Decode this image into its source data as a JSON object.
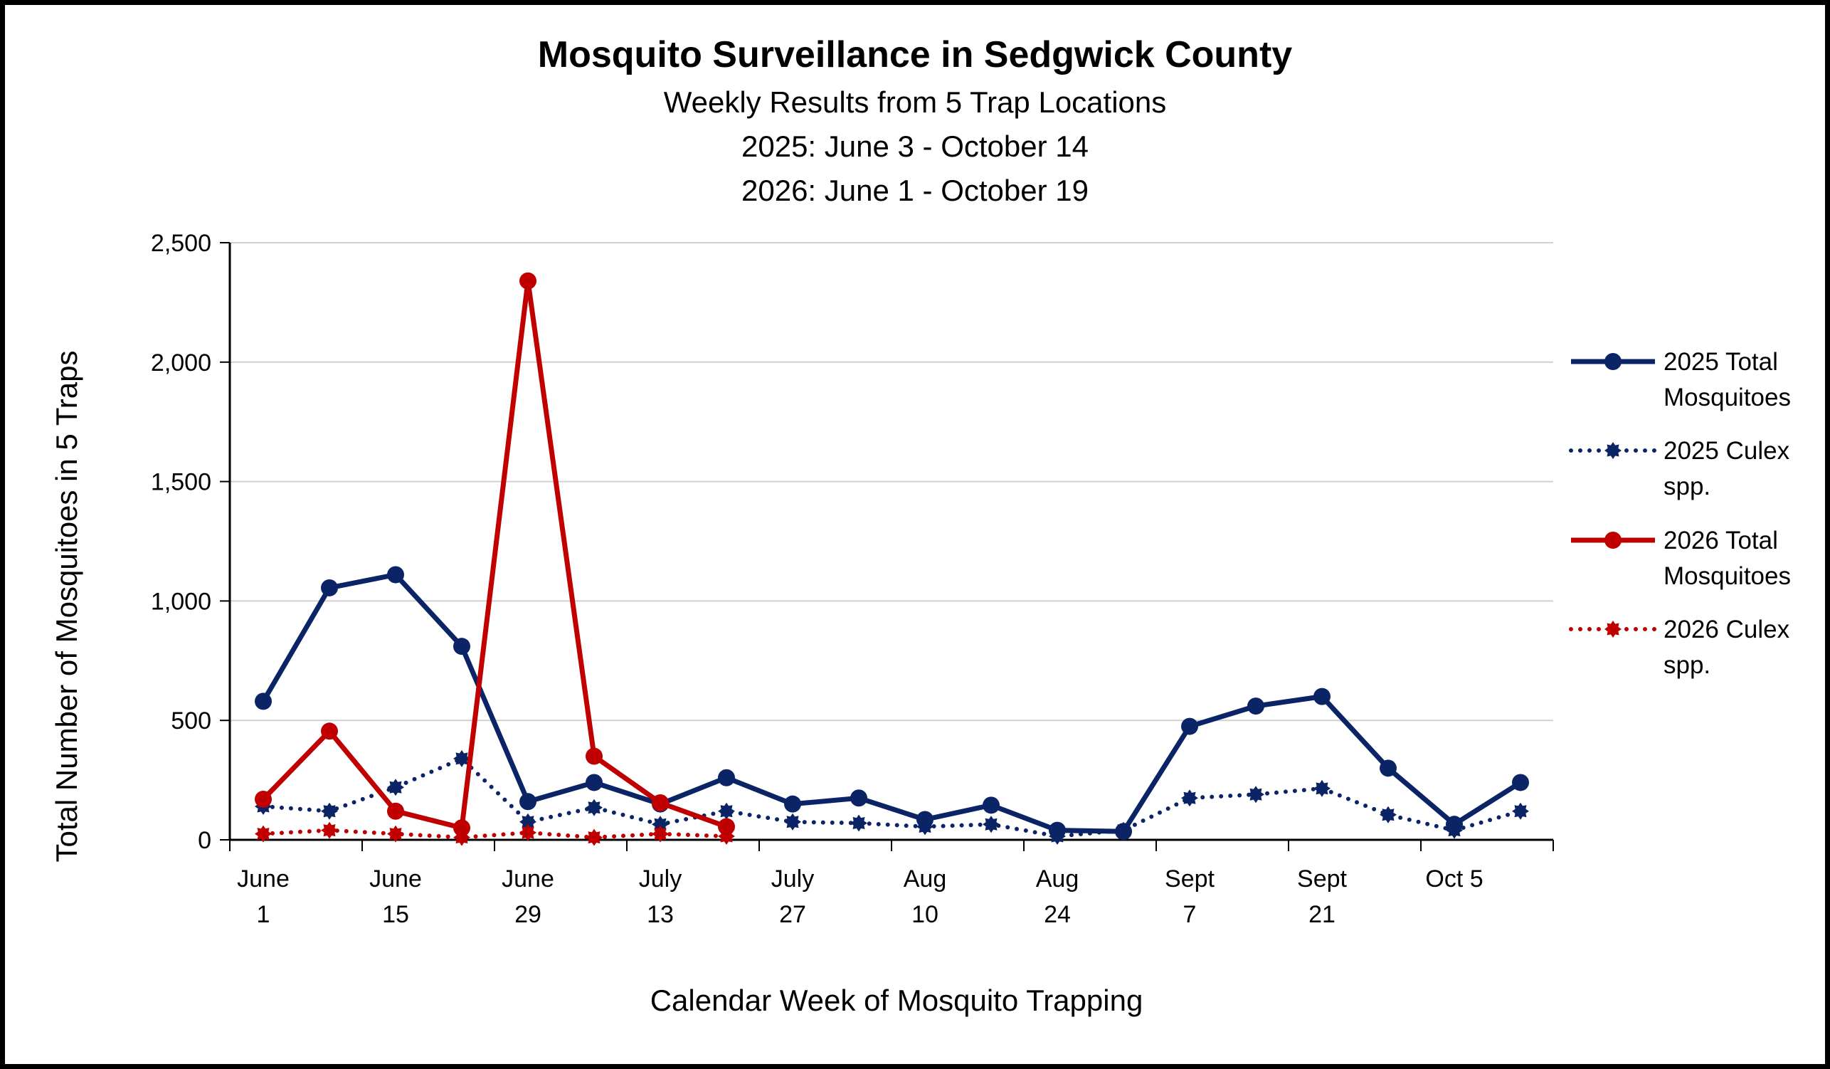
{
  "chart_data": {
    "type": "line",
    "title": "Mosquito Surveillance in Sedgwick County",
    "subtitles": [
      {
        "text": "Weekly Results from 5 Trap Locations",
        "color": "#000000"
      },
      {
        "text": "2025: June 3 - October 14",
        "color": "#0a2466"
      },
      {
        "text": "2026: June 1 - October 19",
        "color": "#c00000"
      }
    ],
    "xlabel": "Calendar Week of Mosquito Trapping",
    "ylabel": "Total Number of Mosquitoes in 5 Traps",
    "ylim": [
      0,
      2500
    ],
    "y_ticks": [
      {
        "value": 0,
        "label": "0"
      },
      {
        "value": 500,
        "label": "500"
      },
      {
        "value": 1000,
        "label": "1,000"
      },
      {
        "value": 1500,
        "label": "1,500"
      },
      {
        "value": 2000,
        "label": "2,000"
      },
      {
        "value": 2500,
        "label": "2,500"
      }
    ],
    "week_count": 20,
    "x_tick_labels": [
      {
        "week": 0,
        "line1": "June",
        "line2": "1"
      },
      {
        "week": 2,
        "line1": "June",
        "line2": "15"
      },
      {
        "week": 4,
        "line1": "June",
        "line2": "29"
      },
      {
        "week": 6,
        "line1": "July",
        "line2": "13"
      },
      {
        "week": 8,
        "line1": "July",
        "line2": "27"
      },
      {
        "week": 10,
        "line1": "Aug",
        "line2": "10"
      },
      {
        "week": 12,
        "line1": "Aug",
        "line2": "24"
      },
      {
        "week": 14,
        "line1": "Sept",
        "line2": "7"
      },
      {
        "week": 16,
        "line1": "Sept",
        "line2": "21"
      },
      {
        "week": 18,
        "line1": "Oct 5",
        "line2": ""
      }
    ],
    "grid": "horizontal",
    "legend_position": "right",
    "series": [
      {
        "name_lines": [
          "2025 Total",
          "Mosquitoes"
        ],
        "color": "#0a2466",
        "style": "solid",
        "values": [
          580,
          1055,
          1110,
          810,
          160,
          240,
          150,
          260,
          150,
          175,
          85,
          145,
          40,
          35,
          475,
          560,
          600,
          300,
          65,
          240
        ]
      },
      {
        "name_lines": [
          "2025 Culex",
          "spp."
        ],
        "color": "#0a2466",
        "style": "dotted",
        "values": [
          140,
          120,
          220,
          340,
          75,
          135,
          65,
          120,
          75,
          70,
          55,
          65,
          15,
          40,
          175,
          190,
          215,
          105,
          40,
          120
        ]
      },
      {
        "name_lines": [
          "2026 Total",
          "Mosquitoes"
        ],
        "color": "#c00000",
        "style": "solid",
        "values": [
          170,
          455,
          120,
          50,
          2340,
          350,
          155,
          55
        ]
      },
      {
        "name_lines": [
          "2026 Culex",
          "spp."
        ],
        "color": "#c00000",
        "style": "dotted",
        "values": [
          25,
          40,
          25,
          10,
          30,
          10,
          25,
          15
        ]
      }
    ]
  }
}
